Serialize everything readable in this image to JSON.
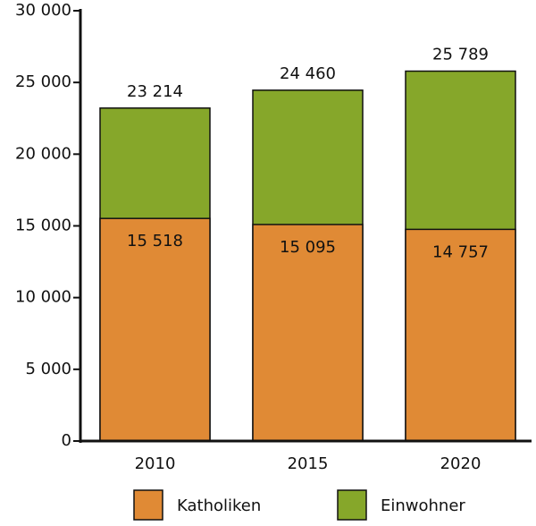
{
  "chart_data": {
    "type": "bar",
    "overlap": true,
    "categories": [
      "2010",
      "2015",
      "2020"
    ],
    "series": [
      {
        "name": "Katholiken",
        "color": "#e08a35",
        "values": [
          15518,
          15095,
          14757
        ],
        "value_labels": [
          "15 518",
          "15 095",
          "14 757"
        ]
      },
      {
        "name": "Einwohner",
        "color": "#86a72a",
        "values": [
          23214,
          24460,
          25789
        ],
        "value_labels": [
          "23 214",
          "24 460",
          "25 789"
        ]
      }
    ],
    "ylim": [
      0,
      30000
    ],
    "yticks": [
      0,
      {
        "value": 5000,
        "label": "5 000"
      },
      {
        "value": 10000,
        "label": "10 000"
      },
      {
        "value": 15000,
        "label": "15 000"
      },
      {
        "value": 20000,
        "label": "20 000"
      },
      {
        "value": 25000,
        "label": "25 000"
      },
      {
        "value": 30000,
        "label": "30 000"
      }
    ],
    "legend": "bottom"
  }
}
